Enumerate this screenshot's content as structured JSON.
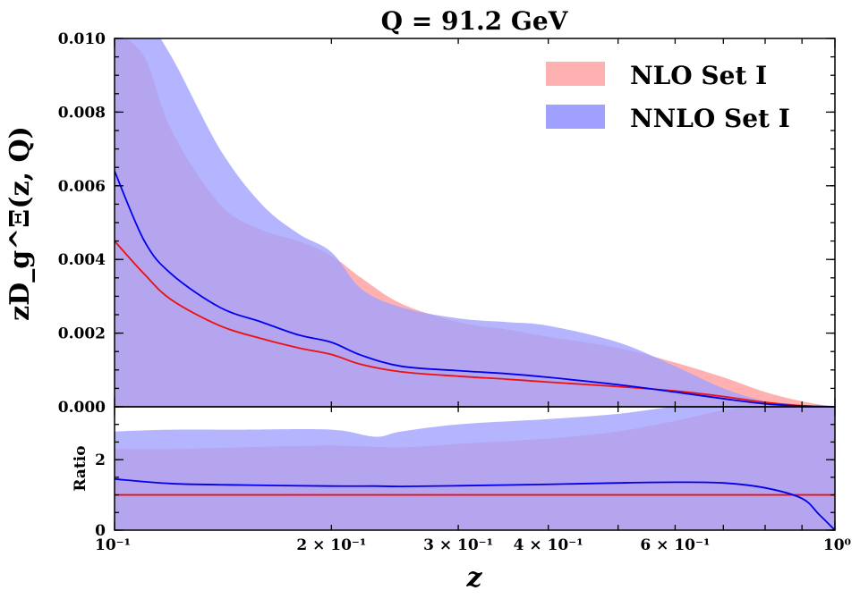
{
  "chart_data": [
    {
      "type": "area",
      "panel": "main",
      "title": "Q = 91.2 GeV",
      "xlabel": "z",
      "ylabel": "zD_g^Ξ(z, Q)",
      "xscale": "log",
      "xlim": [
        0.1,
        1.0
      ],
      "ylim": [
        0.0,
        0.01
      ],
      "yticks": [
        "0.000",
        "0.002",
        "0.004",
        "0.006",
        "0.008",
        "0.010"
      ],
      "legend_position": "top-right",
      "series": [
        {
          "name": "NLO Set I",
          "color": "#ff8080",
          "band_color": "#ffb0b0",
          "x": [
            0.1,
            0.11,
            0.12,
            0.14,
            0.16,
            0.18,
            0.2,
            0.22,
            0.25,
            0.3,
            0.35,
            0.4,
            0.5,
            0.6,
            0.7,
            0.8,
            0.9,
            1.0
          ],
          "central": [
            0.0045,
            0.0036,
            0.0029,
            0.0022,
            0.00185,
            0.0016,
            0.00142,
            0.00115,
            0.00095,
            0.00083,
            0.00075,
            0.00067,
            0.00055,
            0.00043,
            0.00028,
            0.00012,
            3e-05,
            0.0
          ],
          "lower": [
            0.0,
            0.0,
            0.0,
            0.0,
            0.0,
            0.0,
            0.0,
            0.0,
            0.0,
            0.0,
            0.0,
            0.0,
            0.0,
            0.0,
            0.0,
            0.0,
            0.0,
            0.0
          ],
          "upper": [
            0.0102,
            0.0095,
            0.0075,
            0.0055,
            0.0048,
            0.0045,
            0.0041,
            0.0035,
            0.0028,
            0.0023,
            0.0021,
            0.0019,
            0.0016,
            0.0012,
            0.0008,
            0.0004,
            0.00015,
            0.0
          ]
        },
        {
          "name": "NNLO Set I",
          "color": "#0000ee",
          "band_color": "#a0a0ff",
          "x": [
            0.1,
            0.11,
            0.12,
            0.14,
            0.16,
            0.18,
            0.2,
            0.22,
            0.25,
            0.3,
            0.35,
            0.4,
            0.5,
            0.6,
            0.7,
            0.8,
            0.9,
            1.0
          ],
          "central": [
            0.0064,
            0.0045,
            0.0036,
            0.0027,
            0.0023,
            0.00195,
            0.00175,
            0.0014,
            0.0011,
            0.00098,
            0.0009,
            0.0008,
            0.0006,
            0.0004,
            0.00022,
            8e-05,
            2e-05,
            0.0
          ],
          "lower": [
            0.0,
            0.0,
            0.0,
            0.0,
            0.0,
            0.0,
            0.0,
            0.0,
            0.0,
            0.0,
            0.0,
            0.0,
            0.0,
            0.0,
            0.0,
            0.0,
            0.0,
            0.0
          ],
          "upper": [
            0.0105,
            0.0105,
            0.0095,
            0.007,
            0.0055,
            0.0047,
            0.0042,
            0.0032,
            0.0027,
            0.0024,
            0.0023,
            0.0022,
            0.00175,
            0.0011,
            0.0005,
            0.00015,
            3e-05,
            0.0
          ]
        }
      ]
    },
    {
      "type": "area",
      "panel": "ratio",
      "ylabel": "Ratio",
      "xlabel": "z",
      "xscale": "log",
      "xlim": [
        0.1,
        1.0
      ],
      "ylim": [
        0,
        3.5
      ],
      "yticks": [
        "0",
        "2"
      ],
      "xticks": [
        "10⁻¹",
        "2 × 10⁻¹",
        "3 × 10⁻¹",
        "4 × 10⁻¹",
        "6 × 10⁻¹",
        "10⁰"
      ],
      "series": [
        {
          "name": "NLO Set I",
          "color": "#ff2020",
          "band_color": "#ffb0b0",
          "x": [
            0.1,
            0.12,
            0.15,
            0.2,
            0.25,
            0.3,
            0.4,
            0.5,
            0.6,
            0.7,
            0.8,
            0.9,
            0.95,
            1.0
          ],
          "central": [
            1.0,
            1.0,
            1.0,
            1.0,
            1.0,
            1.0,
            1.0,
            1.0,
            1.0,
            1.0,
            1.0,
            1.0,
            1.0,
            1.0
          ],
          "lower": [
            0.0,
            0.0,
            0.0,
            0.0,
            0.0,
            0.0,
            0.0,
            0.0,
            0.0,
            0.0,
            0.0,
            0.0,
            0.0,
            0.0
          ],
          "upper": [
            2.3,
            2.3,
            2.35,
            2.4,
            2.35,
            2.45,
            2.6,
            2.8,
            3.1,
            3.4,
            3.5,
            3.5,
            3.5,
            3.5
          ]
        },
        {
          "name": "NNLO Set I",
          "color": "#0000ee",
          "band_color": "#a0a0ff",
          "x": [
            0.1,
            0.12,
            0.15,
            0.2,
            0.23,
            0.25,
            0.3,
            0.4,
            0.5,
            0.6,
            0.7,
            0.8,
            0.9,
            0.95,
            1.0
          ],
          "central": [
            1.45,
            1.32,
            1.28,
            1.25,
            1.25,
            1.24,
            1.26,
            1.3,
            1.34,
            1.36,
            1.34,
            1.2,
            0.9,
            0.45,
            0.0
          ],
          "lower": [
            0.0,
            0.0,
            0.0,
            0.0,
            0.0,
            0.0,
            0.0,
            0.0,
            0.0,
            0.0,
            0.0,
            0.0,
            0.0,
            0.0,
            0.0
          ],
          "upper": [
            2.8,
            2.85,
            2.85,
            2.85,
            2.65,
            2.8,
            3.0,
            3.15,
            3.3,
            3.5,
            3.5,
            3.5,
            3.5,
            3.5,
            3.5
          ]
        }
      ]
    }
  ]
}
